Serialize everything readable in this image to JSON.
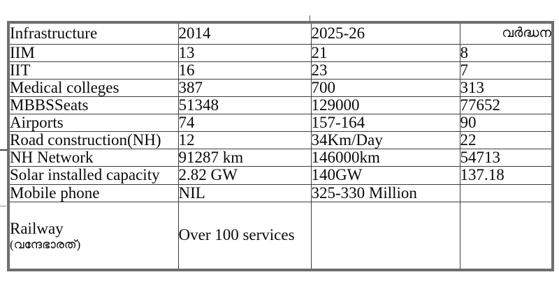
{
  "page": {
    "background_color": "#ffffff",
    "text_color": "#0a0a0a",
    "outer_border_color": "#6e6e6e",
    "inner_border_color": "#3d3d3d"
  },
  "table": {
    "headers": [
      "Infrastructure",
      "2014",
      "2025-26",
      "വർദ്ധന"
    ],
    "rows": [
      {
        "cells": [
          "IIM",
          "13",
          "21",
          "8"
        ]
      },
      {
        "cells": [
          "IIT",
          "16",
          "23",
          "7"
        ]
      },
      {
        "cells": [
          "Medical colleges",
          "387",
          "700",
          "313"
        ]
      },
      {
        "cells": [
          "MBBSSeats",
          "51348",
          "129000",
          "77652"
        ]
      },
      {
        "cells": [
          "Airports",
          "74",
          "157-164",
          "90"
        ]
      },
      {
        "cells": [
          "Road construction(NH)",
          "12",
          "34Km/Day",
          "22"
        ]
      },
      {
        "cells": [
          "NH Network",
          "91287 km",
          "146000km",
          "54713"
        ]
      },
      {
        "cells": [
          "Solar installed capacity",
          "2.82 GW",
          "140GW",
          "137.18"
        ]
      },
      {
        "cells": [
          "Mobile phone",
          "NIL",
          "325-330 Million",
          ""
        ]
      },
      {
        "cells": [
          "Railway",
          "Over 100 services",
          "",
          ""
        ],
        "label_line2": "(വന്ദേഭാരത്)"
      }
    ]
  }
}
